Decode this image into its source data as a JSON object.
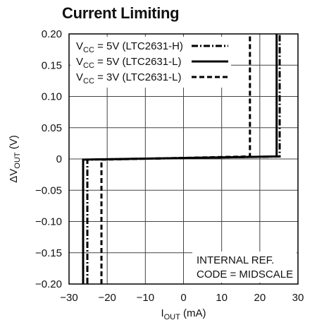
{
  "chart_data": {
    "type": "line",
    "title": "Current Limiting",
    "xlabel_main": "I",
    "xlabel_sub": "OUT",
    "xlabel_unit": " (mA)",
    "ylabel_prefix": "ΔV",
    "ylabel_sub": "OUT",
    "ylabel_unit": " (V)",
    "xlim": [
      -30,
      30
    ],
    "ylim": [
      -0.2,
      0.2
    ],
    "x_ticks": [
      -30,
      -20,
      -10,
      0,
      10,
      20,
      30
    ],
    "x_tick_labels": [
      "−30",
      "−20",
      "−10",
      "0",
      "10",
      "20",
      "30"
    ],
    "y_ticks": [
      0.2,
      0.15,
      0.1,
      0.05,
      0,
      -0.05,
      -0.1,
      -0.15,
      -0.2
    ],
    "y_tick_labels": [
      "0.20",
      "0.15",
      "0.10",
      "0.05",
      "0",
      "−0.05",
      "−0.10",
      "−0.15",
      "−0.20"
    ],
    "grid": true,
    "legend_position": "top-left",
    "annotation": [
      "INTERNAL REF.",
      "CODE = MIDSCALE"
    ],
    "series": [
      {
        "legend_pre": "V",
        "legend_sub": "CC",
        "legend_post": " = 5V (LTC2631-H)",
        "style": "dashdot",
        "x": [
          -25.2,
          -25.2,
          -24.6,
          24.6,
          25.2,
          25.2
        ],
        "y": [
          -0.2,
          -0.001,
          -0.001,
          0.004,
          0.004,
          0.2
        ]
      },
      {
        "legend_pre": "V",
        "legend_sub": "CC",
        "legend_post": " = 5V (LTC2631-L)",
        "style": "solid",
        "x": [
          -26.3,
          -26.3,
          -25.7,
          23.7,
          24.4,
          24.4
        ],
        "y": [
          -0.2,
          -0.001,
          -0.001,
          0.004,
          0.004,
          0.2
        ]
      },
      {
        "legend_pre": "V",
        "legend_sub": "CC",
        "legend_post": " = 3V (LTC2631-L)",
        "style": "dashed",
        "x": [
          -21.5,
          -21.5,
          -20.9,
          16.8,
          17.4,
          17.4
        ],
        "y": [
          -0.2,
          -0.001,
          -0.001,
          0.004,
          0.004,
          0.2
        ]
      }
    ]
  }
}
